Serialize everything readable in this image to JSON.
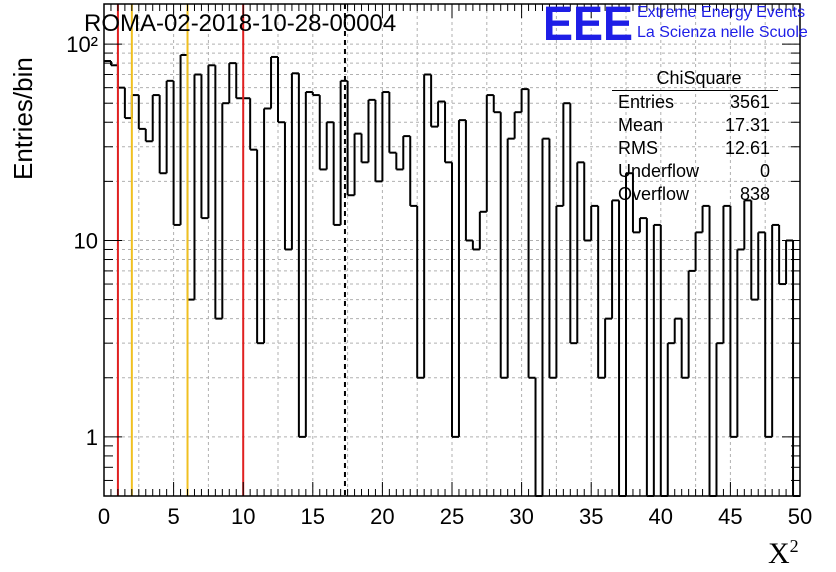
{
  "header": {
    "run_title": "ROMA-02-2018-10-28-00004",
    "logo_text": "EEE",
    "logo_line1": "Extreme Energy Events",
    "logo_line2": "La Scienza nelle Scuole"
  },
  "stats_box": {
    "title": "ChiSquare",
    "rows": [
      {
        "label": "Entries",
        "value": "3561"
      },
      {
        "label": "Mean",
        "value": "17.31"
      },
      {
        "label": "RMS",
        "value": "12.61"
      },
      {
        "label": "Underflow",
        "value": "0"
      },
      {
        "label": "Overflow",
        "value": "838"
      }
    ]
  },
  "chart_data": {
    "type": "bar",
    "subtype": "histogram",
    "title": "ROMA-02-2018-10-28-00004",
    "xlabel": "X",
    "xlabel_superscript": "2",
    "ylabel": "Entries/bin",
    "xlim": [
      0,
      50
    ],
    "ylim": [
      0.5,
      160
    ],
    "y_scale": "log",
    "bin_width": 0.5,
    "x_ticks": [
      "0",
      "5",
      "10",
      "15",
      "20",
      "25",
      "30",
      "35",
      "40",
      "45",
      "50"
    ],
    "y_ticks": [
      "1",
      "10",
      "10²"
    ],
    "grid": true,
    "values": [
      82,
      78,
      60,
      42,
      55,
      37,
      32,
      55,
      22,
      65,
      12,
      88,
      5,
      70,
      13,
      78,
      4,
      50,
      80,
      53,
      53,
      29,
      3,
      47,
      86,
      40,
      9,
      71,
      1,
      57,
      55,
      23,
      40,
      12,
      65,
      17,
      35,
      25,
      52,
      20,
      57,
      28,
      23,
      34,
      15,
      2,
      70,
      38,
      51,
      25,
      1,
      41,
      10,
      9,
      14,
      55,
      45,
      2,
      33,
      45,
      59,
      2,
      0.3,
      33,
      2,
      15,
      50,
      3,
      25,
      10,
      15,
      2,
      4,
      16,
      0.3,
      22,
      11,
      13,
      0.3,
      12,
      0.3,
      3,
      4,
      2,
      7,
      11,
      15,
      0.3,
      3,
      15,
      1,
      9,
      16,
      5,
      11,
      1,
      12,
      6,
      10,
      0.3
    ],
    "vertical_lines": [
      {
        "x": 1,
        "color": "#e02020",
        "style": "solid"
      },
      {
        "x": 2,
        "color": "#f0c020",
        "style": "solid"
      },
      {
        "x": 6,
        "color": "#f0c020",
        "style": "solid"
      },
      {
        "x": 10,
        "color": "#e02020",
        "style": "solid"
      },
      {
        "x": 17.31,
        "color": "#000000",
        "style": "dashed"
      }
    ],
    "colors": {
      "histogram": "#000000",
      "logo": "#1e1ee6"
    }
  }
}
